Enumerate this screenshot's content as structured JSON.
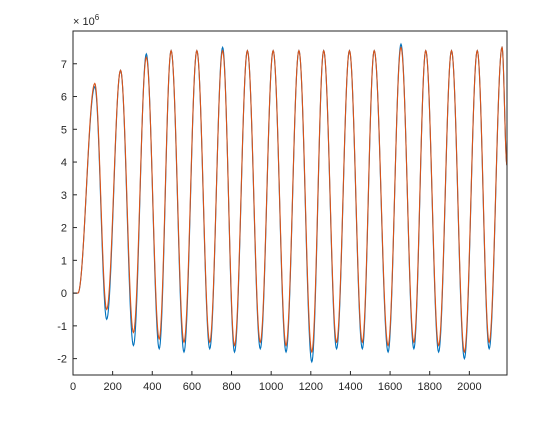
{
  "chart_data": {
    "type": "line",
    "title": "",
    "xlabel": "",
    "ylabel": "",
    "xlim": [
      0,
      2190
    ],
    "ylim": [
      -2.5,
      8.0
    ],
    "y_exponent_label": "× 10",
    "y_exponent_power": "6",
    "x_ticks": [
      0,
      200,
      400,
      600,
      800,
      1000,
      1200,
      1400,
      1600,
      1800,
      2000
    ],
    "x_tick_labels": [
      "0",
      "200",
      "400",
      "600",
      "800",
      "1000",
      "1200",
      "1400",
      "1600",
      "1800",
      "2000"
    ],
    "y_ticks": [
      -2,
      -1,
      0,
      1,
      2,
      3,
      4,
      5,
      6,
      7
    ],
    "y_tick_labels": [
      "-2",
      "-1",
      "0",
      "1",
      "2",
      "3",
      "4",
      "5",
      "6",
      "7"
    ],
    "grid": false,
    "legend": "none",
    "colors": {
      "blue": "#0072BD",
      "orange": "#D95319",
      "axis": "#262626"
    },
    "peaks_x": [
      110,
      240,
      370,
      495,
      625,
      755,
      880,
      1010,
      1140,
      1265,
      1395,
      1520,
      1655,
      1780,
      1910,
      2040,
      2165
    ],
    "troughs_x": [
      170,
      305,
      435,
      560,
      690,
      815,
      945,
      1075,
      1205,
      1330,
      1460,
      1590,
      1720,
      1845,
      1975,
      2100
    ],
    "series": [
      {
        "color": "blue",
        "peaks": [
          6.3,
          6.8,
          7.3,
          7.4,
          7.4,
          7.5,
          7.4,
          7.4,
          7.4,
          7.4,
          7.4,
          7.4,
          7.6,
          7.4,
          7.4,
          7.4,
          7.5
        ],
        "troughs": [
          -0.8,
          -1.6,
          -1.7,
          -1.8,
          -1.7,
          -1.8,
          -1.7,
          -1.8,
          -2.1,
          -1.7,
          -1.7,
          -1.8,
          -1.7,
          -1.8,
          -2.0,
          -1.7
        ],
        "end_value": 3.9
      },
      {
        "color": "orange",
        "peaks": [
          6.4,
          6.8,
          7.2,
          7.4,
          7.4,
          7.4,
          7.4,
          7.4,
          7.4,
          7.4,
          7.4,
          7.4,
          7.5,
          7.4,
          7.4,
          7.4,
          7.5
        ],
        "troughs": [
          -0.5,
          -1.2,
          -1.4,
          -1.5,
          -1.5,
          -1.6,
          -1.5,
          -1.6,
          -1.8,
          -1.5,
          -1.5,
          -1.6,
          -1.5,
          -1.6,
          -1.8,
          -1.5
        ],
        "end_value": 3.9
      }
    ]
  }
}
